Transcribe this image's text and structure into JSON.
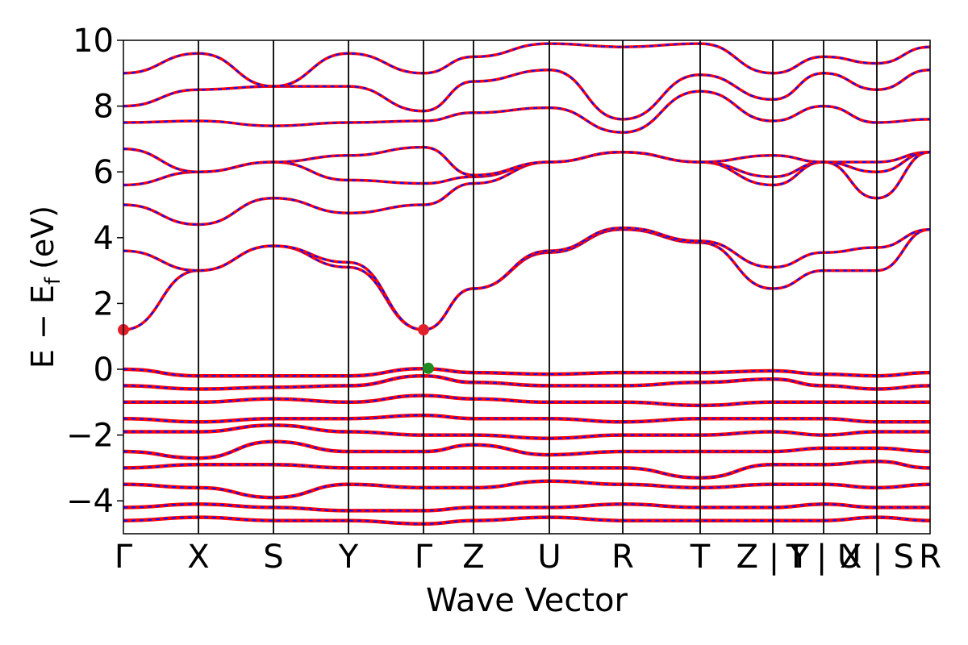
{
  "chart_data": {
    "type": "line",
    "title": "",
    "xlabel": "Wave Vector",
    "ylabel": "E − E_f (eV)",
    "ylabel_parts": {
      "main": "E − E",
      "sub": "f",
      "unit": "(eV)"
    },
    "ylim": [
      -5,
      10
    ],
    "yticks": [
      -4,
      -2,
      0,
      2,
      4,
      6,
      8,
      10
    ],
    "ytick_labels": [
      "−4",
      "−2",
      "0",
      "2",
      "4",
      "6",
      "8",
      "10"
    ],
    "grid": false,
    "legend": "none",
    "kpoints": [
      {
        "label": "Γ",
        "k": 0.0
      },
      {
        "label": "X",
        "k": 0.093
      },
      {
        "label": "S",
        "k": 0.186
      },
      {
        "label": "Y",
        "k": 0.279
      },
      {
        "label": "Γ",
        "k": 0.372
      },
      {
        "label": "Z",
        "k": 0.434
      },
      {
        "label": "U",
        "k": 0.528
      },
      {
        "label": "R",
        "k": 0.619
      },
      {
        "label": "T",
        "k": 0.715
      },
      {
        "label": "Z | Y",
        "k": 0.805
      },
      {
        "label": "T | U",
        "k": 0.868
      },
      {
        "label": "X | S",
        "k": 0.934
      },
      {
        "label": "R",
        "k": 1.0
      }
    ],
    "band_gap_markers": [
      {
        "type": "CBM",
        "k": 0.0,
        "E": 1.2,
        "color": "#e0202a"
      },
      {
        "type": "CBM",
        "k": 0.372,
        "E": 1.2,
        "color": "#e0202a"
      },
      {
        "type": "VBM",
        "k": 0.378,
        "E": 0.03,
        "color": "#1f8a1f"
      }
    ],
    "series": [
      {
        "note": "Spin up (solid red) and spin down (dashed blue) bands overlap",
        "colors": {
          "up": "#ff0000",
          "down": "#1010ff"
        },
        "conduction_bands_at_kpoints": [
          [
            1.2,
            3.0,
            3.75,
            3.1,
            1.2,
            2.45,
            3.55,
            4.25,
            3.85,
            2.45,
            3.0,
            3.0,
            4.25
          ],
          [
            3.6,
            3.0,
            3.75,
            3.25,
            1.2,
            2.45,
            3.6,
            4.3,
            3.9,
            3.1,
            3.55,
            3.7,
            4.25
          ],
          [
            5.0,
            4.4,
            5.2,
            4.75,
            5.0,
            5.65,
            6.3,
            6.6,
            6.3,
            5.6,
            6.3,
            6.3,
            6.6
          ],
          [
            5.6,
            6.0,
            6.3,
            5.75,
            5.65,
            5.85,
            6.3,
            6.6,
            6.3,
            5.85,
            6.3,
            5.2,
            6.6
          ],
          [
            6.7,
            6.0,
            6.3,
            6.5,
            6.75,
            5.9,
            6.3,
            6.6,
            6.3,
            6.5,
            6.3,
            6.0,
            6.6
          ],
          [
            7.5,
            7.55,
            7.4,
            7.5,
            7.55,
            7.8,
            7.95,
            7.2,
            8.45,
            7.55,
            8.0,
            7.5,
            7.6
          ],
          [
            8.0,
            8.5,
            8.6,
            8.6,
            7.85,
            8.75,
            9.1,
            7.6,
            8.95,
            8.2,
            9.0,
            8.5,
            9.1
          ],
          [
            9.0,
            9.6,
            8.6,
            9.6,
            9.0,
            9.5,
            9.9,
            9.8,
            9.9,
            9.0,
            9.5,
            9.3,
            9.8
          ]
        ],
        "valence_bands_at_kpoints": [
          [
            0.0,
            -0.2,
            -0.2,
            -0.2,
            0.02,
            -0.1,
            -0.15,
            -0.1,
            -0.1,
            -0.05,
            -0.15,
            -0.2,
            -0.1
          ],
          [
            -0.5,
            -0.6,
            -0.55,
            -0.5,
            -0.2,
            -0.4,
            -0.5,
            -0.5,
            -0.4,
            -0.3,
            -0.5,
            -0.6,
            -0.5
          ],
          [
            -1.0,
            -1.0,
            -0.9,
            -1.0,
            -0.8,
            -0.9,
            -1.0,
            -1.0,
            -1.1,
            -1.0,
            -1.0,
            -1.0,
            -1.0
          ],
          [
            -1.5,
            -1.6,
            -1.5,
            -1.5,
            -1.4,
            -1.5,
            -1.5,
            -1.6,
            -1.5,
            -1.5,
            -1.5,
            -1.6,
            -1.6
          ],
          [
            -1.9,
            -1.9,
            -1.7,
            -1.9,
            -2.0,
            -2.0,
            -2.1,
            -2.0,
            -2.0,
            -1.9,
            -2.0,
            -1.9,
            -1.9
          ],
          [
            -2.5,
            -2.7,
            -2.2,
            -2.5,
            -2.5,
            -2.3,
            -2.6,
            -2.5,
            -2.5,
            -2.5,
            -2.4,
            -2.4,
            -2.5
          ],
          [
            -3.0,
            -2.9,
            -2.9,
            -3.0,
            -3.0,
            -3.0,
            -3.0,
            -3.0,
            -3.3,
            -2.9,
            -2.9,
            -2.8,
            -3.0
          ],
          [
            -3.5,
            -3.6,
            -3.9,
            -3.5,
            -3.6,
            -3.6,
            -3.4,
            -3.5,
            -3.6,
            -3.5,
            -3.5,
            -3.6,
            -3.5
          ],
          [
            -4.2,
            -4.1,
            -4.2,
            -4.3,
            -4.3,
            -4.2,
            -4.2,
            -4.1,
            -4.2,
            -4.2,
            -4.1,
            -4.2,
            -4.2
          ],
          [
            -4.6,
            -4.5,
            -4.6,
            -4.6,
            -4.7,
            -4.6,
            -4.5,
            -4.6,
            -4.6,
            -4.6,
            -4.6,
            -4.5,
            -4.6
          ]
        ]
      }
    ]
  }
}
